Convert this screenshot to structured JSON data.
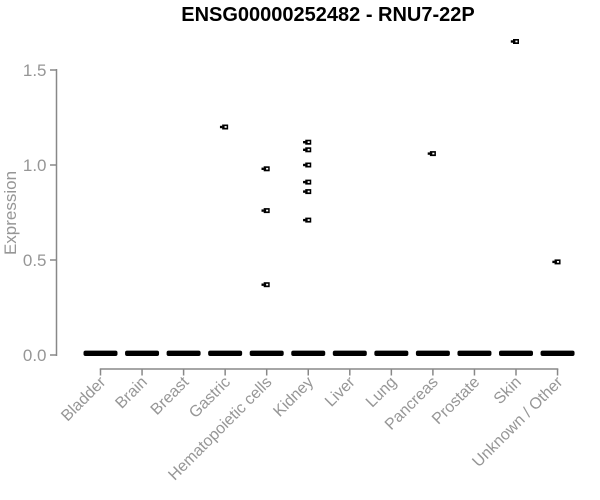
{
  "chart_data": {
    "type": "scatter",
    "title": "ENSG00000252482 - RNU7-22P",
    "xlabel": "",
    "ylabel": "Expression",
    "ylim": [
      0,
      1.7
    ],
    "ytick_labels": [
      "0.0",
      "0.5",
      "1.0",
      "1.5"
    ],
    "ytick_values": [
      0,
      0.5,
      1.0,
      1.5
    ],
    "grid": false,
    "legend": false,
    "marker": "open-square",
    "colors": {
      "point": "#000000",
      "axis_line": "#888888",
      "axis_text": "#969696",
      "title_text": "#000000",
      "background": "#ffffff"
    },
    "categories": [
      "Bladder",
      "Brain",
      "Breast",
      "Gastric",
      "Hematopoietic cells",
      "Kidney",
      "Liver",
      "Lung",
      "Pancreas",
      "Prostate",
      "Skin",
      "Unknown / Other"
    ],
    "series": [
      {
        "category": "Bladder",
        "zero_cluster": true,
        "points": []
      },
      {
        "category": "Brain",
        "zero_cluster": true,
        "points": []
      },
      {
        "category": "Breast",
        "zero_cluster": true,
        "points": []
      },
      {
        "category": "Gastric",
        "zero_cluster": true,
        "points": [
          1.2
        ]
      },
      {
        "category": "Hematopoietic cells",
        "zero_cluster": true,
        "points": [
          0.98,
          0.76,
          0.37
        ]
      },
      {
        "category": "Kidney",
        "zero_cluster": true,
        "points": [
          1.12,
          1.08,
          1.0,
          0.91,
          0.86,
          0.71
        ]
      },
      {
        "category": "Liver",
        "zero_cluster": true,
        "points": []
      },
      {
        "category": "Lung",
        "zero_cluster": true,
        "points": []
      },
      {
        "category": "Pancreas",
        "zero_cluster": true,
        "points": [
          1.06
        ]
      },
      {
        "category": "Prostate",
        "zero_cluster": true,
        "points": []
      },
      {
        "category": "Skin",
        "zero_cluster": true,
        "points": [
          1.65
        ]
      },
      {
        "category": "Unknown / Other",
        "zero_cluster": true,
        "points": [
          0.49
        ]
      }
    ]
  }
}
